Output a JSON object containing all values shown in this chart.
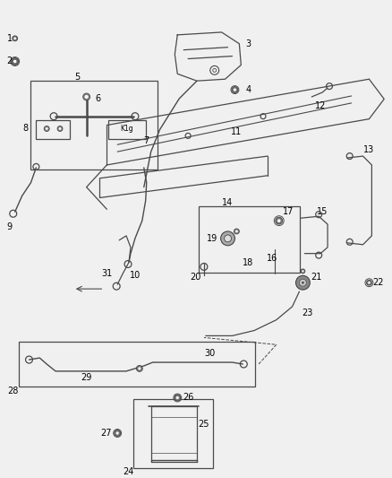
{
  "bg_color": "#f0f0f0",
  "lc": "#4a4a4a",
  "lbl": "#000000",
  "lw": 0.9,
  "fig_w": 4.38,
  "fig_h": 5.33
}
